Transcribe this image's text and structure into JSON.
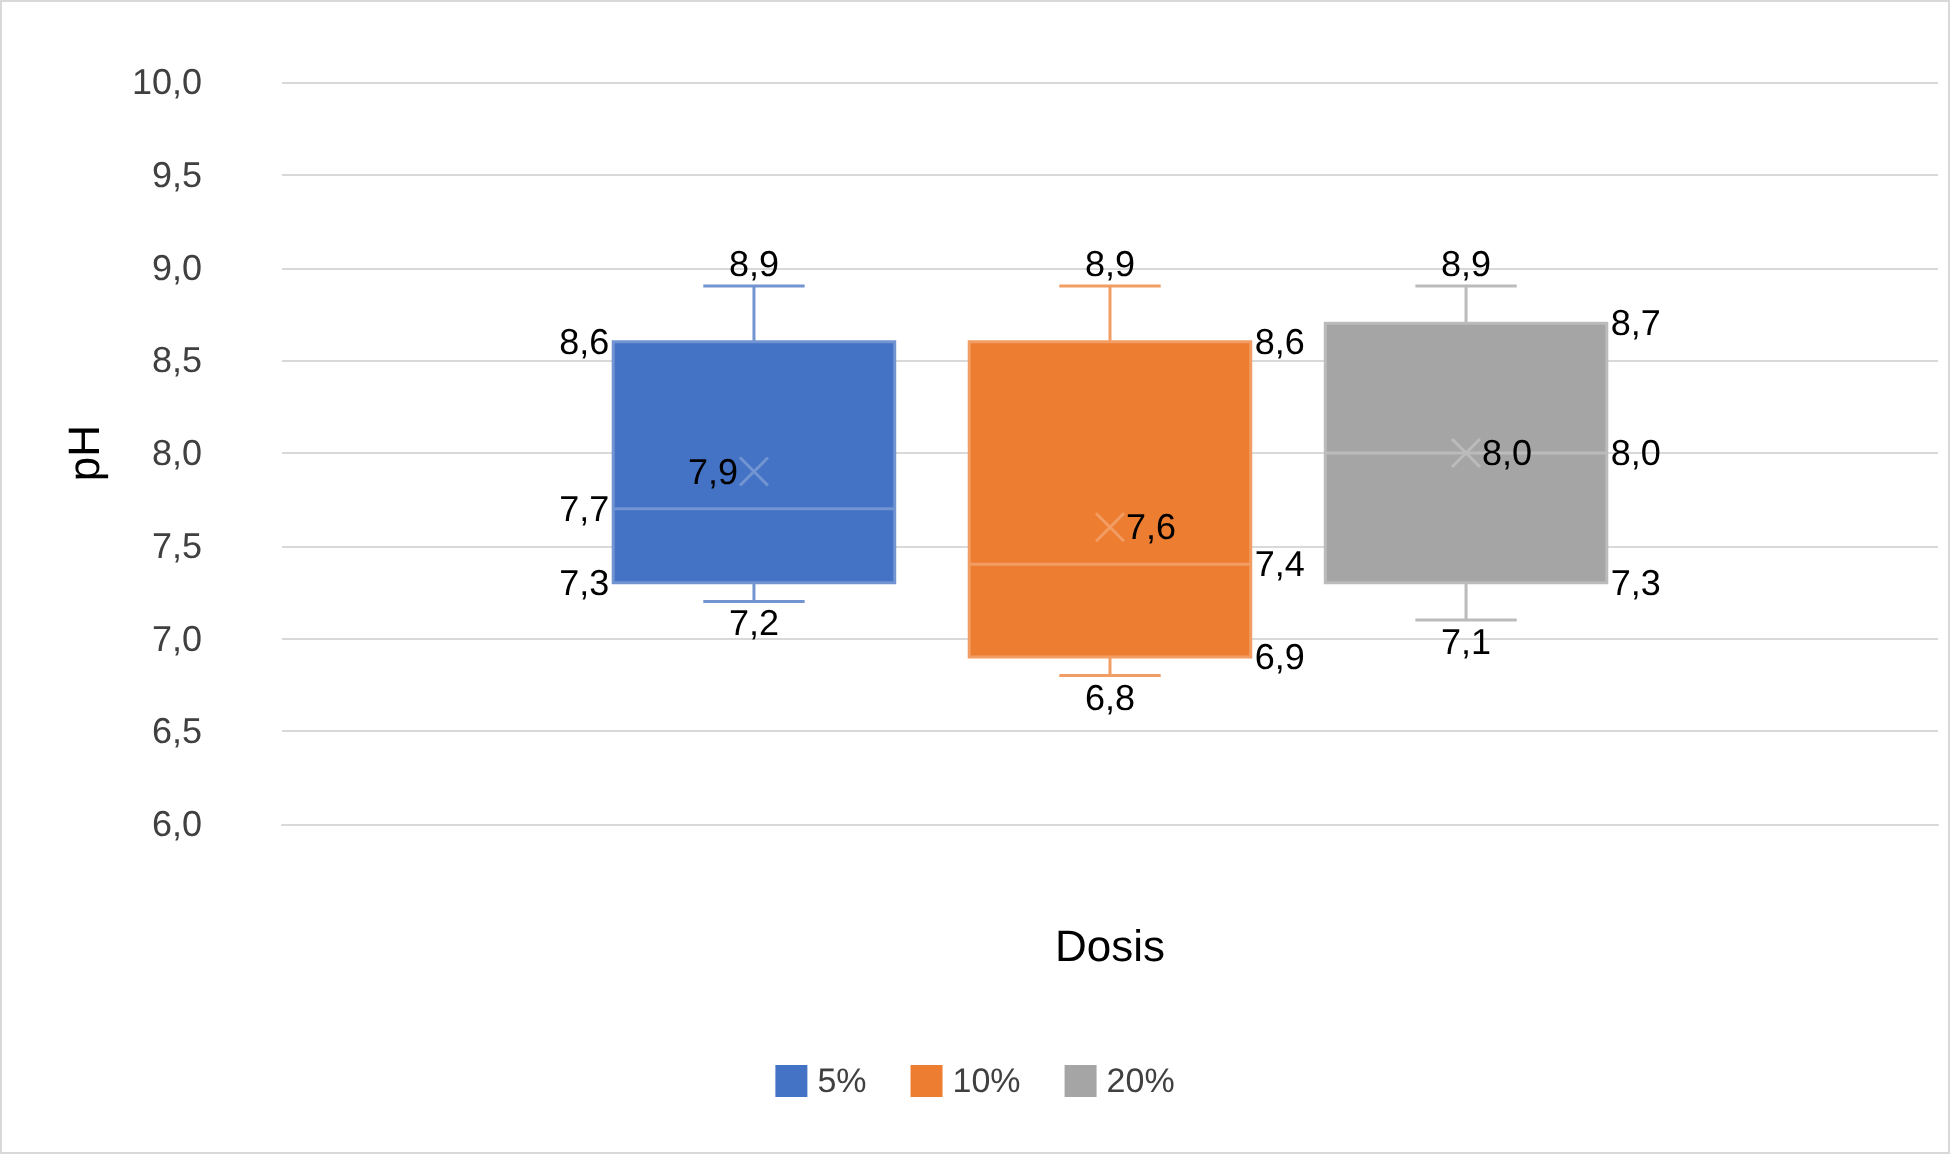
{
  "chart_data": {
    "type": "box",
    "xlabel": "Dosis",
    "ylabel": "pH",
    "categories": [
      null
    ],
    "series": [
      {
        "name": "5%",
        "color": "#4472c4",
        "boxes": [
          {
            "low": 7.2,
            "q1": 7.3,
            "median": 7.7,
            "q3": 8.6,
            "high": 8.9,
            "mean": 7.9
          }
        ],
        "value_labels": [
          [
            "8,9",
            "8,6",
            "7,9",
            "7,7",
            "7,3",
            "7,2"
          ]
        ]
      },
      {
        "name": "10%",
        "color": "#ed7d31",
        "boxes": [
          {
            "low": 6.8,
            "q1": 6.9,
            "median": 7.4,
            "q3": 8.6,
            "high": 8.9,
            "mean": 7.6
          }
        ],
        "value_labels": [
          [
            "8,9",
            "8,6",
            "7,6",
            "7,4",
            "6,9",
            "6,8"
          ]
        ]
      },
      {
        "name": "20%",
        "color": "#a5a5a5",
        "boxes": [
          {
            "low": 7.1,
            "q1": 7.3,
            "median": 8.0,
            "q3": 8.7,
            "high": 8.9,
            "mean": 8.0
          }
        ],
        "value_labels": [
          [
            "8,9",
            "8,7",
            "8,0",
            "8,0",
            "7,3",
            "7,1"
          ]
        ]
      }
    ],
    "ylim": [
      6,
      10
    ],
    "yticks": [
      {
        "value": 6,
        "label": "6,0"
      },
      {
        "value": 6.5,
        "label": "6,5"
      },
      {
        "value": 7,
        "label": "7,0"
      },
      {
        "value": 7.5,
        "label": "7,5"
      },
      {
        "value": 8,
        "label": "8,0"
      },
      {
        "value": 8.5,
        "label": "8,5"
      },
      {
        "value": 9,
        "label": "9,0"
      },
      {
        "value": 9.5,
        "label": "9,5"
      },
      {
        "value": 10,
        "label": "10,0"
      }
    ],
    "grid": "y",
    "legend": "bottom"
  }
}
